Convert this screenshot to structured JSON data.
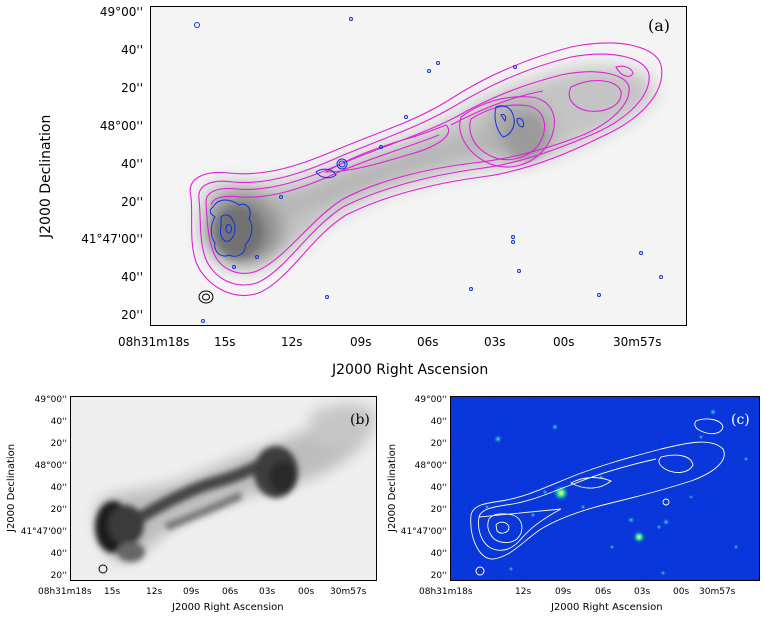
{
  "panels": {
    "a": {
      "label": "(a)",
      "xlabel": "J2000 Right Ascension",
      "ylabel": "J2000 Declination",
      "ra_ticks": [
        "08h31m18s",
        "15s",
        "12s",
        "09s",
        "06s",
        "03s",
        "00s",
        "30m57s"
      ],
      "dec_ticks": [
        "49°00''",
        "40''",
        "20''",
        "48°00''",
        "40''",
        "20''",
        "41°47'00''",
        "40''",
        "20''"
      ]
    },
    "b": {
      "label": "(b)",
      "xlabel": "J2000 Right Ascension",
      "ylabel": "J2000 Declination",
      "ra_ticks": [
        "08h31m18s",
        "15s",
        "12s",
        "09s",
        "06s",
        "03s",
        "00s",
        "30m57s"
      ],
      "dec_ticks": [
        "49°00''",
        "40''",
        "20''",
        "48°00''",
        "40''",
        "20''",
        "41°47'00''",
        "40''",
        "20''"
      ]
    },
    "c": {
      "label": "(c)",
      "xlabel": "J2000 Right Ascension",
      "ylabel": "J2000 Declination",
      "ra_ticks": [
        "08h31m18s",
        "12s",
        "09s",
        "06s",
        "03s",
        "00s",
        "30m57s"
      ],
      "dec_ticks": [
        "49°00''",
        "40''",
        "20''",
        "48°00''",
        "40''",
        "20''",
        "41°47'00''",
        "40''",
        "20''"
      ]
    }
  },
  "colors": {
    "contour_magenta": "#e020d8",
    "contour_blue": "#1030e0",
    "contour_c": "#ffffc0",
    "background_c": "#0a2bd8"
  }
}
